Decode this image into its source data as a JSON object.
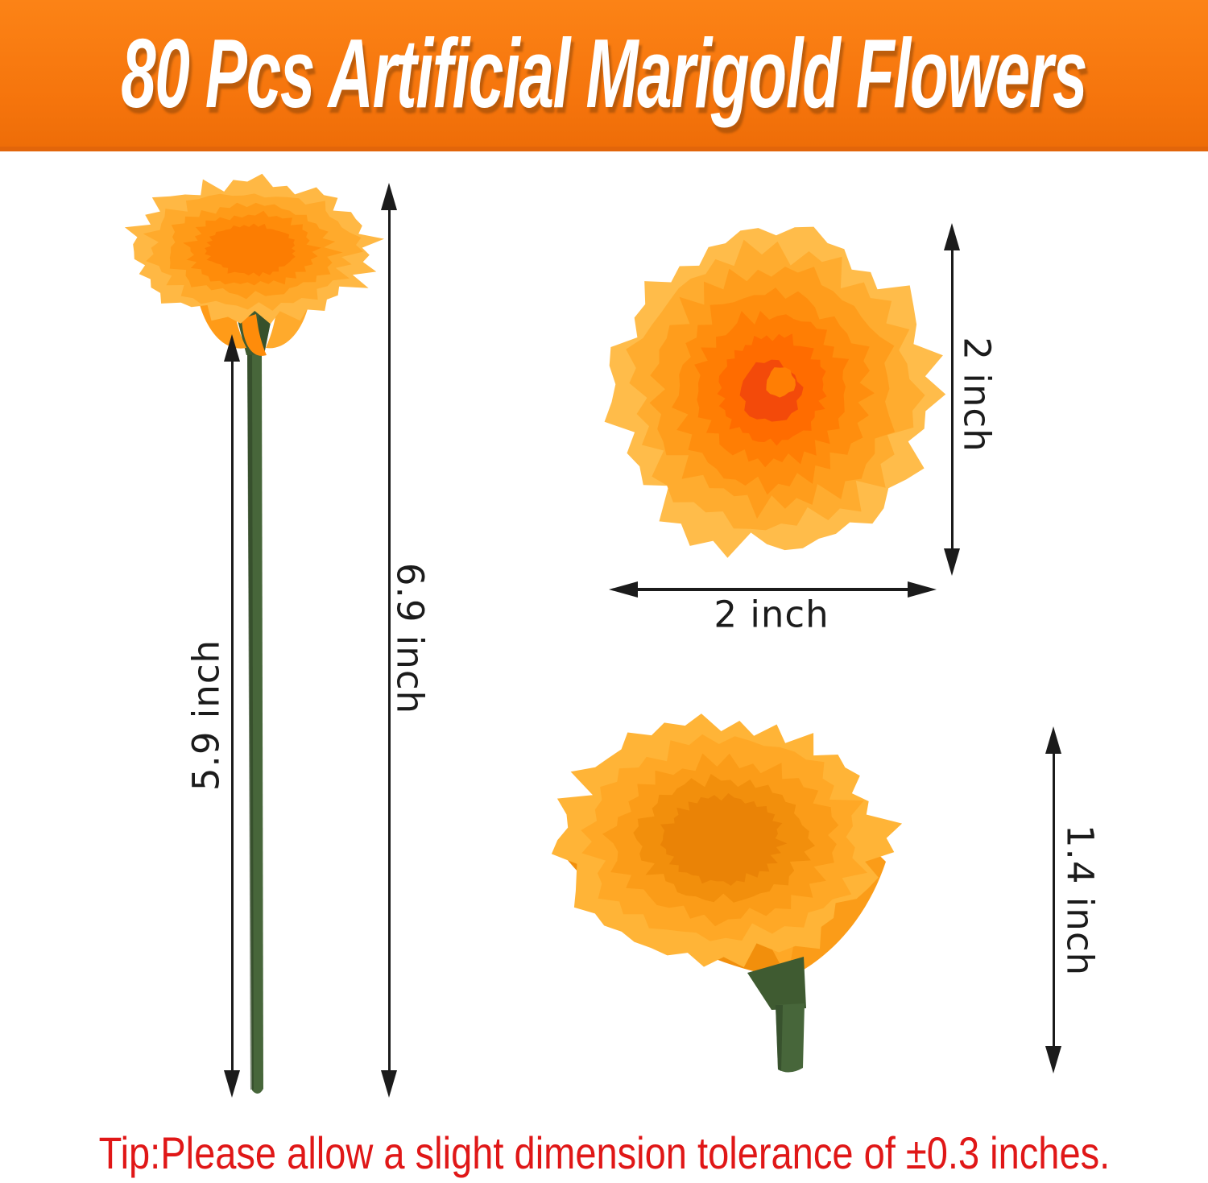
{
  "banner": {
    "title": "80 Pcs Artificial Marigold Flowers"
  },
  "figures": {
    "full_flower": {
      "stem_length_label": "5.9 inch",
      "total_height_label": "6.9 inch"
    },
    "head_front_view": {
      "height_label": "2 inch",
      "width_label": "2 inch"
    },
    "head_side_view": {
      "depth_label": "1.4 inch"
    }
  },
  "tip": {
    "text": "Tip:Please allow a slight dimension tolerance of ±0.3 inches."
  },
  "colors": {
    "banner_orange_light": "#FC8316",
    "banner_orange": "#F5740C",
    "banner_orange_deep": "#EE6D08",
    "banner_edge": "#E2650A",
    "title_white": "#FFFFFF",
    "tip_red": "#E01717",
    "dim_black": "#1B1B1B",
    "stem_green": "#47663A",
    "stem_green_dark": "#2F4526",
    "calyx_green": "#3F5B31",
    "core_orange": "#F2470B",
    "pom_top_palette": [
      "#FFBC4A",
      "#FFAC2F",
      "#FF9D1C",
      "#FF8E0E",
      "#FF7E04",
      "#FF6C00"
    ],
    "pom_left_palette": [
      "#FFB844",
      "#FFAA2C",
      "#FF9B18",
      "#FF8C0A",
      "#FC7D02"
    ],
    "pom_fan_palette": [
      "#FFB437",
      "#FFA826",
      "#FB9C18",
      "#F28F0C",
      "#EA8306"
    ]
  }
}
